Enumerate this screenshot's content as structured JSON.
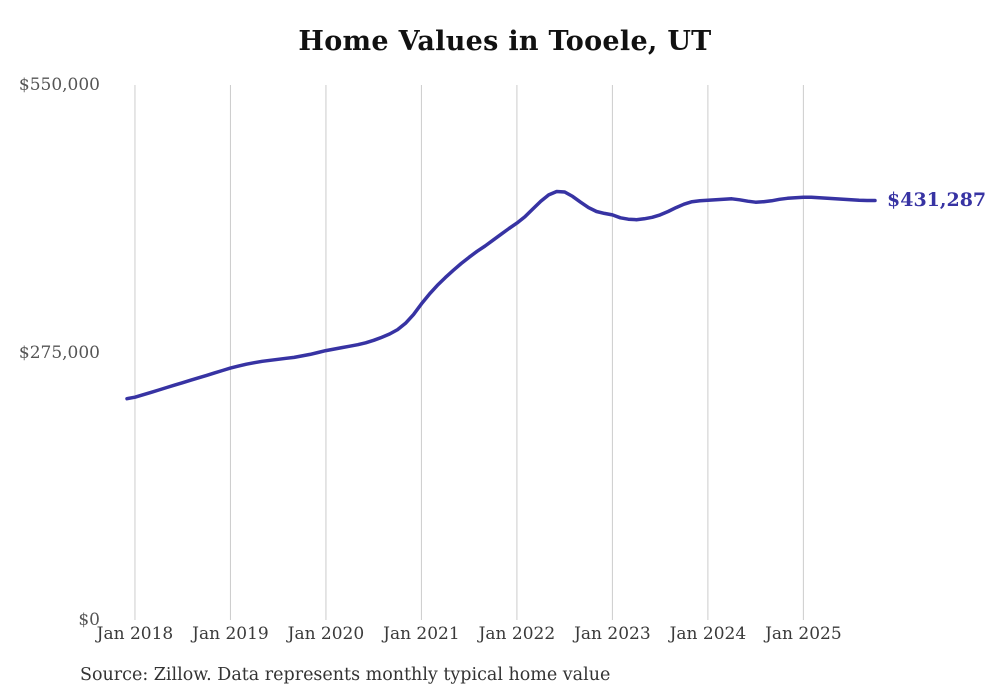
{
  "chart_data": {
    "type": "line",
    "title": "Home Values in Tooele, UT",
    "series_name": "Monthly typical home value",
    "source_note": "Source: Zillow. Data represents monthly typical home value",
    "end_label": "$431,287",
    "latest_value": 431287,
    "x_start": "Dec 2017",
    "x_interval": "monthly",
    "x_tick_labels": [
      "Jan 2018",
      "Jan 2019",
      "Jan 2020",
      "Jan 2021",
      "Jan 2022",
      "Jan 2023",
      "Jan 2024",
      "Jan 2025"
    ],
    "y_ticks": [
      0,
      275000,
      550000
    ],
    "y_tick_labels": [
      "$0",
      "$275,000",
      "$550,000"
    ],
    "ylim": [
      0,
      550000
    ],
    "grid": "vertical-only",
    "legend": "none",
    "line_color": "#3733a3",
    "gridline_color": "#cccccc",
    "values": [
      227500,
      229000,
      231500,
      234000,
      236500,
      239000,
      241500,
      244000,
      246500,
      249000,
      251500,
      254000,
      256500,
      259000,
      261000,
      263000,
      264500,
      266000,
      267000,
      268000,
      269000,
      270000,
      271500,
      273000,
      275000,
      277000,
      278500,
      280000,
      281500,
      283000,
      285000,
      287500,
      290500,
      294000,
      298500,
      305000,
      314000,
      325000,
      335000,
      344000,
      352000,
      359500,
      366500,
      373000,
      379000,
      384500,
      390500,
      396500,
      402500,
      408000,
      414500,
      422500,
      430500,
      437000,
      440500,
      440000,
      435500,
      429500,
      424000,
      420000,
      418000,
      416500,
      413500,
      412000,
      411500,
      412500,
      414000,
      416500,
      420000,
      424000,
      427500,
      430000,
      431000,
      431500,
      432000,
      432500,
      433000,
      432000,
      430500,
      429500,
      430000,
      431000,
      432500,
      433500,
      434000,
      434500,
      434500,
      434000,
      433500,
      433000,
      432500,
      432000,
      431500,
      431300,
      431287
    ]
  }
}
